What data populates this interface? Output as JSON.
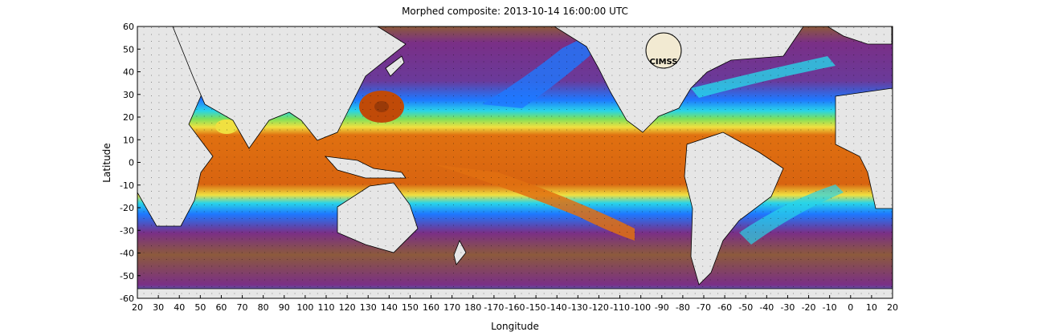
{
  "title": "Morphed composite: 2013-10-14 16:00:00 UTC",
  "xlabel": "Longitude",
  "ylabel": "Latitude",
  "logo_text": "CIMSS",
  "x_ticks": [
    "20",
    "30",
    "40",
    "50",
    "60",
    "70",
    "80",
    "90",
    "100",
    "110",
    "120",
    "130",
    "140",
    "150",
    "160",
    "170",
    "180",
    "-170",
    "-160",
    "-150",
    "-140",
    "-130",
    "-120",
    "-110",
    "-100",
    "-90",
    "-80",
    "-70",
    "-60",
    "-50",
    "-40",
    "-30",
    "-20",
    "-10",
    "0",
    "10",
    "20"
  ],
  "y_ticks": [
    "60",
    "50",
    "40",
    "30",
    "20",
    "10",
    "0",
    "-10",
    "-20",
    "-30",
    "-40",
    "-50",
    "-60"
  ],
  "colors": {
    "land": "#e6e6e6",
    "dry_brown": "#8c5a3c",
    "purple": "#7a2f86",
    "blue": "#1e78ff",
    "cyan": "#28d4e8",
    "green": "#7ee05a",
    "yellow": "#f0e040",
    "orange": "#e07010",
    "dark_orange": "#c04a08"
  },
  "chart_data": {
    "type": "heatmap",
    "title": "Morphed composite: 2013-10-14 16:00:00 UTC",
    "xlabel": "Longitude",
    "ylabel": "Latitude",
    "xlim": [
      20,
      380
    ],
    "ylim": [
      -60,
      60
    ],
    "grid": true,
    "projection": "equirectangular",
    "colorscale": [
      "dry_brown",
      "purple",
      "blue",
      "cyan",
      "green",
      "yellow",
      "orange",
      "dark_orange"
    ]
  }
}
